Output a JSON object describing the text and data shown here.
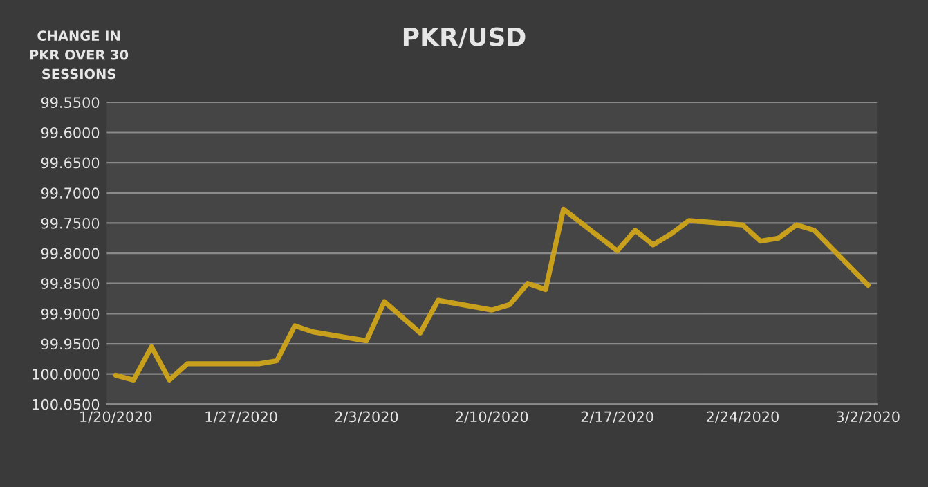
{
  "chart_data": {
    "type": "line",
    "title": "PKR/USD",
    "ylabel": "CHANGE IN\nPKR OVER 30\nSESSIONS",
    "x": [
      "2020-01-20",
      "2020-01-21",
      "2020-01-22",
      "2020-01-23",
      "2020-01-24",
      "2020-01-27",
      "2020-01-28",
      "2020-01-29",
      "2020-01-30",
      "2020-01-31",
      "2020-02-03",
      "2020-02-04",
      "2020-02-06",
      "2020-02-07",
      "2020-02-10",
      "2020-02-11",
      "2020-02-12",
      "2020-02-13",
      "2020-02-14",
      "2020-02-17",
      "2020-02-18",
      "2020-02-19",
      "2020-02-20",
      "2020-02-21",
      "2020-02-24",
      "2020-02-25",
      "2020-02-26",
      "2020-02-27",
      "2020-02-28",
      "2020-03-02"
    ],
    "series": [
      {
        "color": "#c9a01c",
        "values": [
          100.002,
          100.01,
          99.955,
          100.01,
          99.983,
          99.983,
          99.983,
          99.978,
          99.92,
          99.93,
          99.945,
          99.88,
          99.932,
          99.878,
          99.894,
          99.885,
          99.85,
          99.86,
          99.727,
          99.796,
          99.762,
          99.786,
          99.768,
          99.746,
          99.753,
          99.78,
          99.775,
          99.753,
          99.762,
          99.853
        ]
      }
    ],
    "ylim": [
      100.05,
      99.55
    ],
    "yticks": [
      {
        "value": 99.55,
        "label": "99.5500"
      },
      {
        "value": 99.6,
        "label": "99.6000"
      },
      {
        "value": 99.65,
        "label": "99.6500"
      },
      {
        "value": 99.7,
        "label": "99.7000"
      },
      {
        "value": 99.75,
        "label": "99.7500"
      },
      {
        "value": 99.8,
        "label": "99.8000"
      },
      {
        "value": 99.85,
        "label": "99.8500"
      },
      {
        "value": 99.9,
        "label": "99.9000"
      },
      {
        "value": 99.95,
        "label": "99.9500"
      },
      {
        "value": 100.0,
        "label": "100.0000"
      },
      {
        "value": 100.05,
        "label": "100.0500"
      }
    ],
    "xlim": [
      "2020-01-19T12:00",
      "2020-03-02T12:00"
    ],
    "xticks": [
      {
        "value": "2020-01-20",
        "label": "1/20/2020"
      },
      {
        "value": "2020-01-27",
        "label": "1/27/2020"
      },
      {
        "value": "2020-02-03",
        "label": "2/3/2020"
      },
      {
        "value": "2020-02-10",
        "label": "2/10/2020"
      },
      {
        "value": "2020-02-17",
        "label": "2/17/2020"
      },
      {
        "value": "2020-02-24",
        "label": "2/24/2020"
      },
      {
        "value": "2020-03-02",
        "label": "3/2/2020"
      }
    ],
    "grid": "y",
    "legend": false,
    "marker": "none",
    "line_style": "solid"
  }
}
